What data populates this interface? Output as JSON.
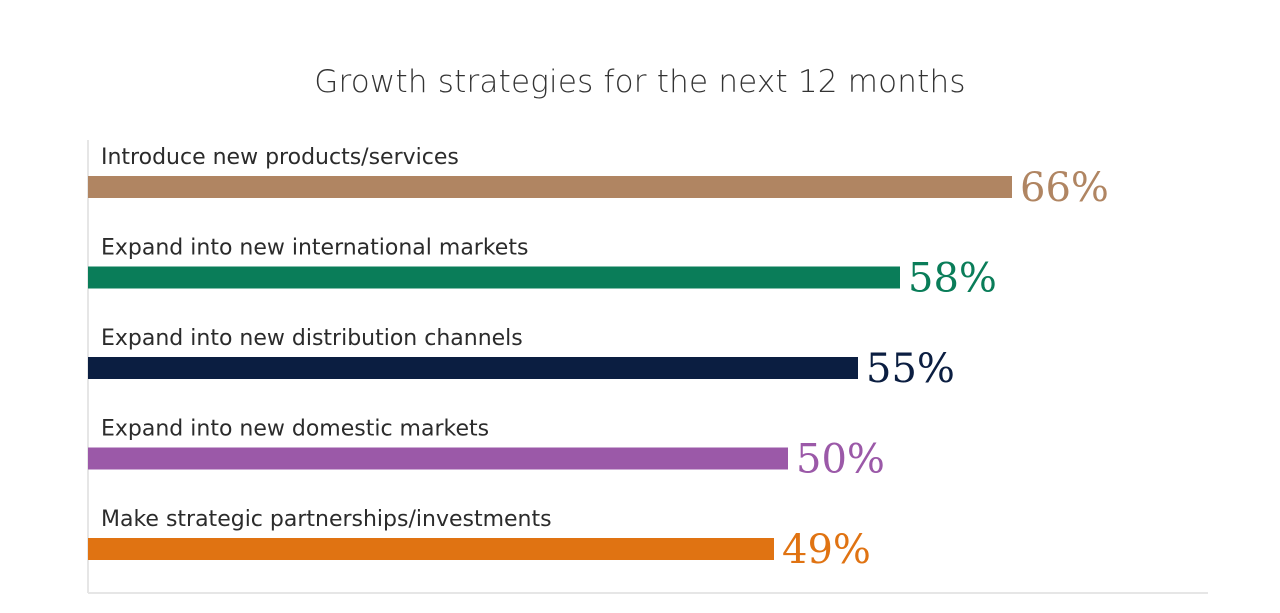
{
  "chart_data": {
    "type": "bar",
    "orientation": "horizontal",
    "title": "Growth strategies for the next 12 months",
    "xlabel": "",
    "ylabel": "",
    "xlim": [
      0,
      72
    ],
    "grid": false,
    "legend": "none",
    "categories": [
      "Introduce new products/services",
      "Expand into new international markets",
      "Expand into new distribution channels",
      "Expand into new domestic markets",
      "Make strategic partnerships/investments"
    ],
    "values": [
      66,
      58,
      55,
      50,
      49
    ],
    "value_labels": [
      "66%",
      "58%",
      "55%",
      "50%",
      "49%"
    ],
    "colors": [
      "#b08562",
      "#0a7d59",
      "#0b1e41",
      "#9b59a8",
      "#e07312"
    ]
  }
}
